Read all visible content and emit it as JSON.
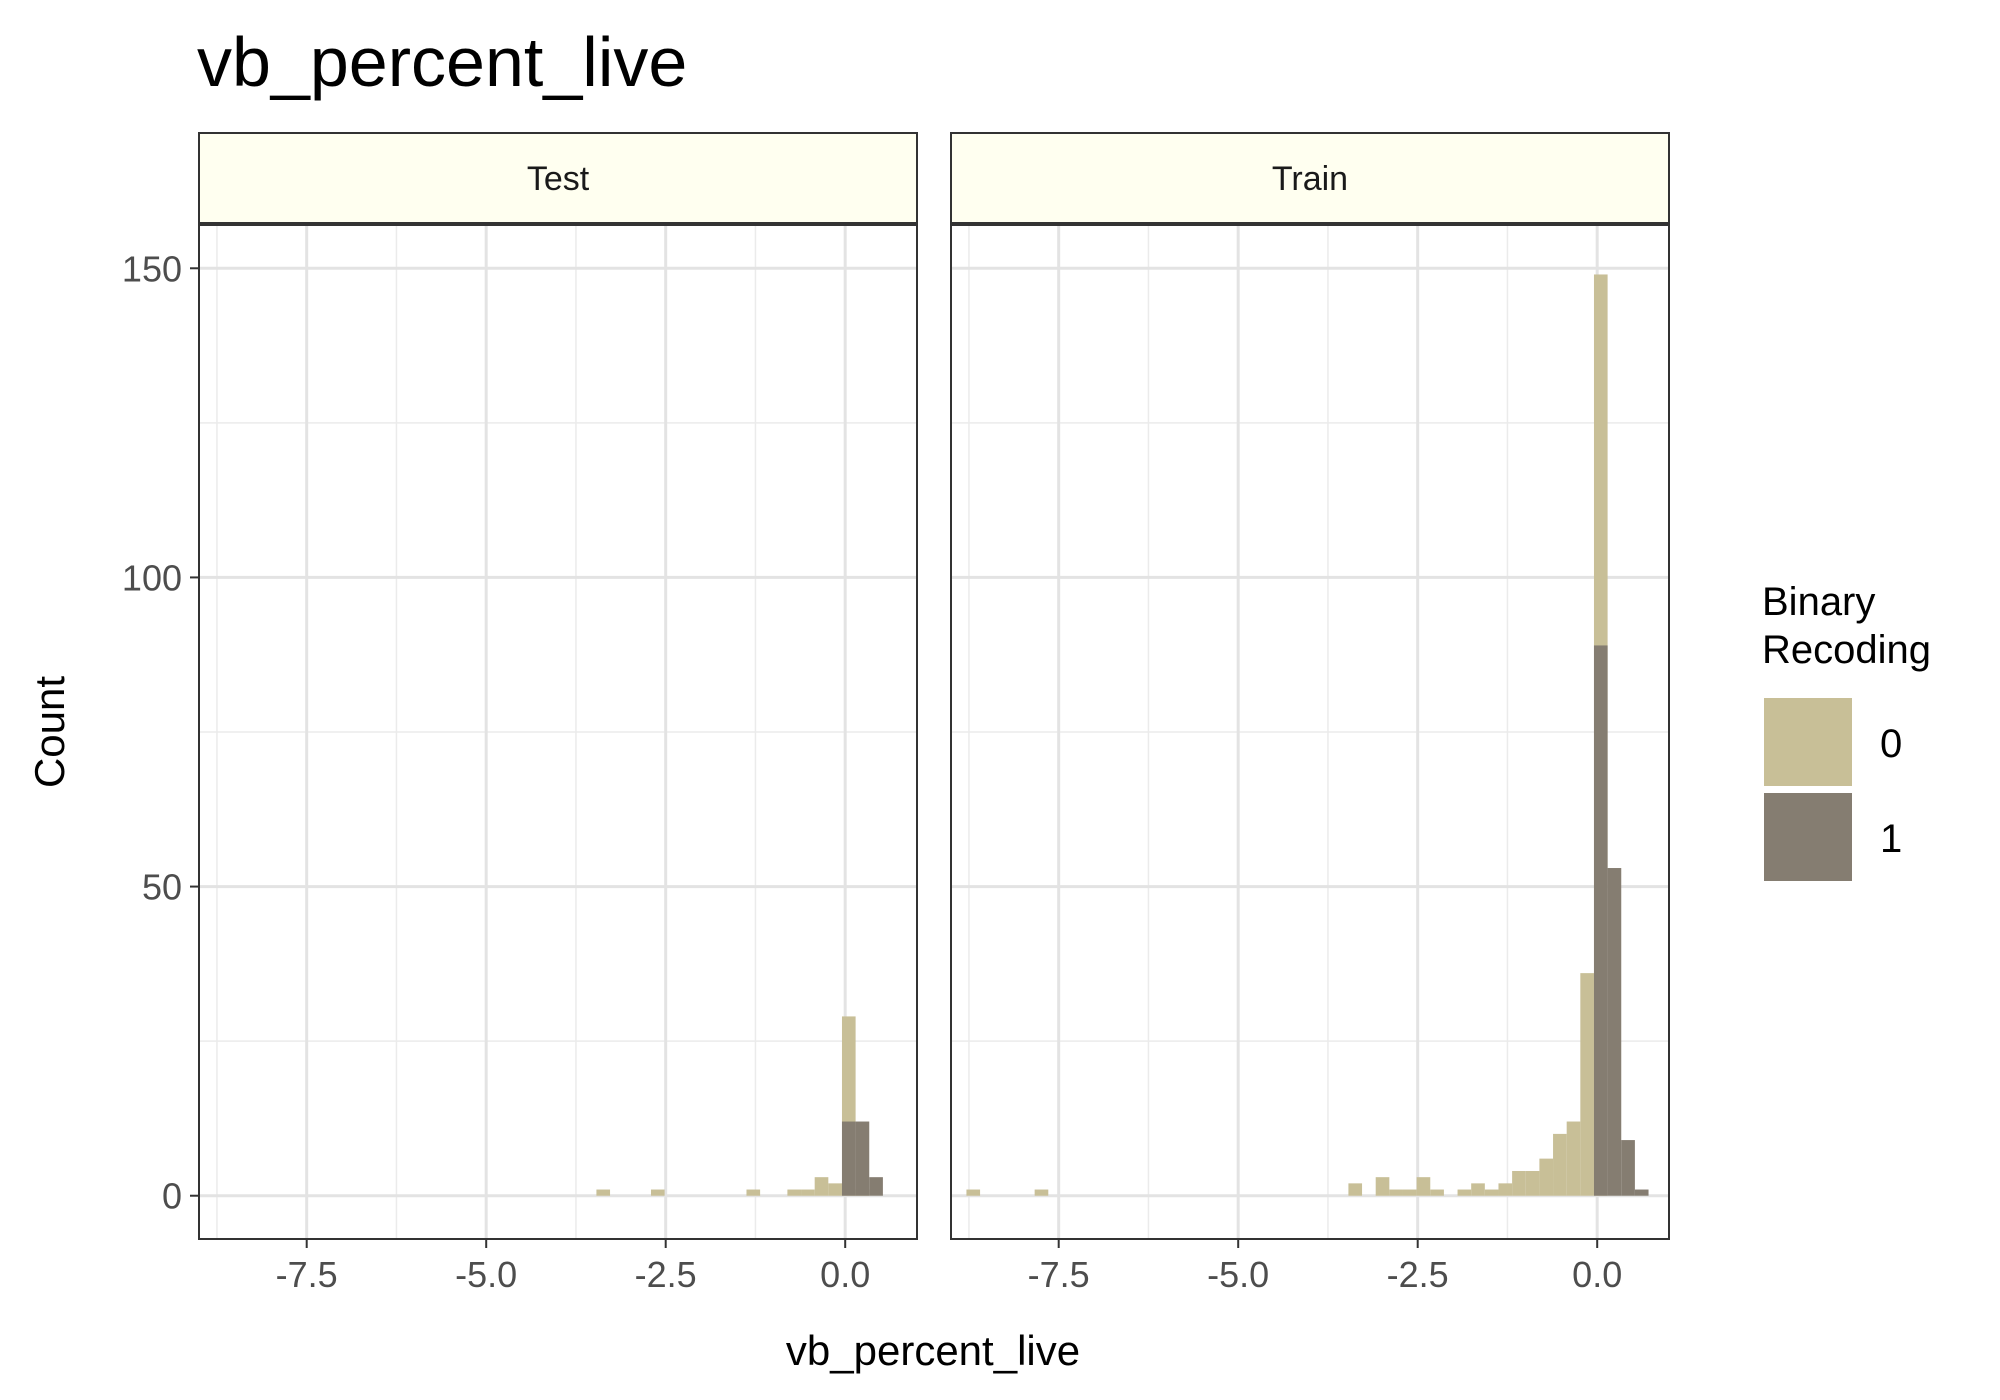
{
  "chart_data": {
    "type": "bar",
    "title": "vb_percent_live",
    "xlabel": "vb_percent_live",
    "ylabel": "Count",
    "xlim": [
      -9.0,
      1.0
    ],
    "ylim": [
      -7,
      157
    ],
    "x_ticks": [
      -7.5,
      -5.0,
      -2.5,
      0.0
    ],
    "x_tick_labels": [
      "-7.5",
      "-5.0",
      "-2.5",
      "0.0"
    ],
    "y_ticks": [
      0,
      50,
      100,
      150
    ],
    "y_tick_labels": [
      "0",
      "50",
      "100",
      "150"
    ],
    "grid": true,
    "bin_width": 0.19,
    "legend": {
      "title_lines": [
        "Binary",
        "Recoding"
      ],
      "position": "right",
      "entries": [
        {
          "label": "0",
          "color": "#c8bf97"
        },
        {
          "label": "1",
          "color": "#857d71"
        }
      ]
    },
    "panels": [
      {
        "name": "Test",
        "series": [
          {
            "name": "0",
            "color": "#c8bf97",
            "bins": [
              {
                "x": -3.37,
                "count": 1
              },
              {
                "x": -2.61,
                "count": 1
              },
              {
                "x": -1.28,
                "count": 1
              },
              {
                "x": -0.71,
                "count": 1
              },
              {
                "x": -0.52,
                "count": 1
              },
              {
                "x": -0.33,
                "count": 3
              },
              {
                "x": -0.14,
                "count": 2
              },
              {
                "x": 0.05,
                "count": 29
              },
              {
                "x": 0.24,
                "count": 1
              }
            ]
          },
          {
            "name": "1",
            "color": "#857d71",
            "bins": [
              {
                "x": 0.05,
                "count": 12
              },
              {
                "x": 0.24,
                "count": 12
              },
              {
                "x": 0.43,
                "count": 3
              }
            ]
          }
        ]
      },
      {
        "name": "Train",
        "series": [
          {
            "name": "0",
            "color": "#c8bf97",
            "bins": [
              {
                "x": -8.69,
                "count": 1
              },
              {
                "x": -7.74,
                "count": 1
              },
              {
                "x": -3.37,
                "count": 2
              },
              {
                "x": -2.99,
                "count": 3
              },
              {
                "x": -2.8,
                "count": 1
              },
              {
                "x": -2.61,
                "count": 1
              },
              {
                "x": -2.42,
                "count": 3
              },
              {
                "x": -2.23,
                "count": 1
              },
              {
                "x": -1.85,
                "count": 1
              },
              {
                "x": -1.66,
                "count": 2
              },
              {
                "x": -1.47,
                "count": 1
              },
              {
                "x": -1.28,
                "count": 2
              },
              {
                "x": -1.09,
                "count": 4
              },
              {
                "x": -0.9,
                "count": 4
              },
              {
                "x": -0.71,
                "count": 6
              },
              {
                "x": -0.52,
                "count": 10
              },
              {
                "x": -0.33,
                "count": 12
              },
              {
                "x": -0.14,
                "count": 36
              },
              {
                "x": 0.05,
                "count": 149
              }
            ]
          },
          {
            "name": "1",
            "color": "#857d71",
            "bins": [
              {
                "x": 0.05,
                "count": 89
              },
              {
                "x": 0.24,
                "count": 53
              },
              {
                "x": 0.43,
                "count": 9
              },
              {
                "x": 0.62,
                "count": 1
              }
            ]
          }
        ]
      }
    ]
  }
}
